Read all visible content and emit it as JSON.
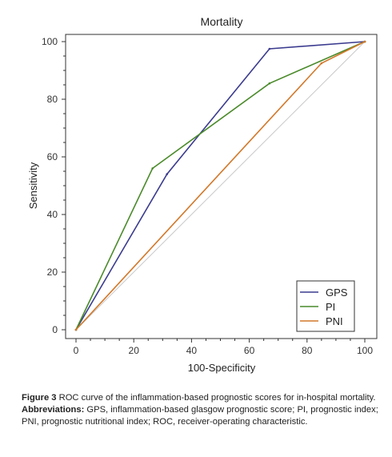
{
  "chart_data": {
    "type": "line",
    "title": "Mortality",
    "xlabel": "100-Specificity",
    "ylabel": "Sensitivity",
    "xlim": [
      0,
      100
    ],
    "ylim": [
      0,
      100
    ],
    "xticks": [
      0,
      20,
      40,
      60,
      80,
      100
    ],
    "yticks": [
      0,
      20,
      40,
      60,
      80,
      100
    ],
    "grid": false,
    "legend_position": "bottom-right",
    "reference_line": {
      "x": [
        0,
        100
      ],
      "y": [
        0,
        100
      ],
      "color": "#c8c8c8"
    },
    "series": [
      {
        "name": "GPS",
        "color": "#3b3b8f",
        "x": [
          0,
          31.5,
          67,
          100
        ],
        "y": [
          0,
          54,
          97.5,
          100
        ]
      },
      {
        "name": "PI",
        "color": "#4a8a2a",
        "x": [
          0,
          26.5,
          67,
          100
        ],
        "y": [
          0,
          56,
          85.5,
          100
        ]
      },
      {
        "name": "PNI",
        "color": "#d2782a",
        "x": [
          0,
          85,
          100
        ],
        "y": [
          0,
          92.5,
          100
        ]
      }
    ]
  },
  "caption": {
    "figure_label": "Figure 3",
    "figure_text": " ROC curve of the inflammation-based prognostic scores for in-hospital mortality.",
    "abbrev_label": "Abbreviations:",
    "abbrev_text": " GPS, inflammation-based glasgow prognostic score; PI, prognostic index; PNI, prognostic nutritional index; ROC, receiver-operating characteristic."
  }
}
